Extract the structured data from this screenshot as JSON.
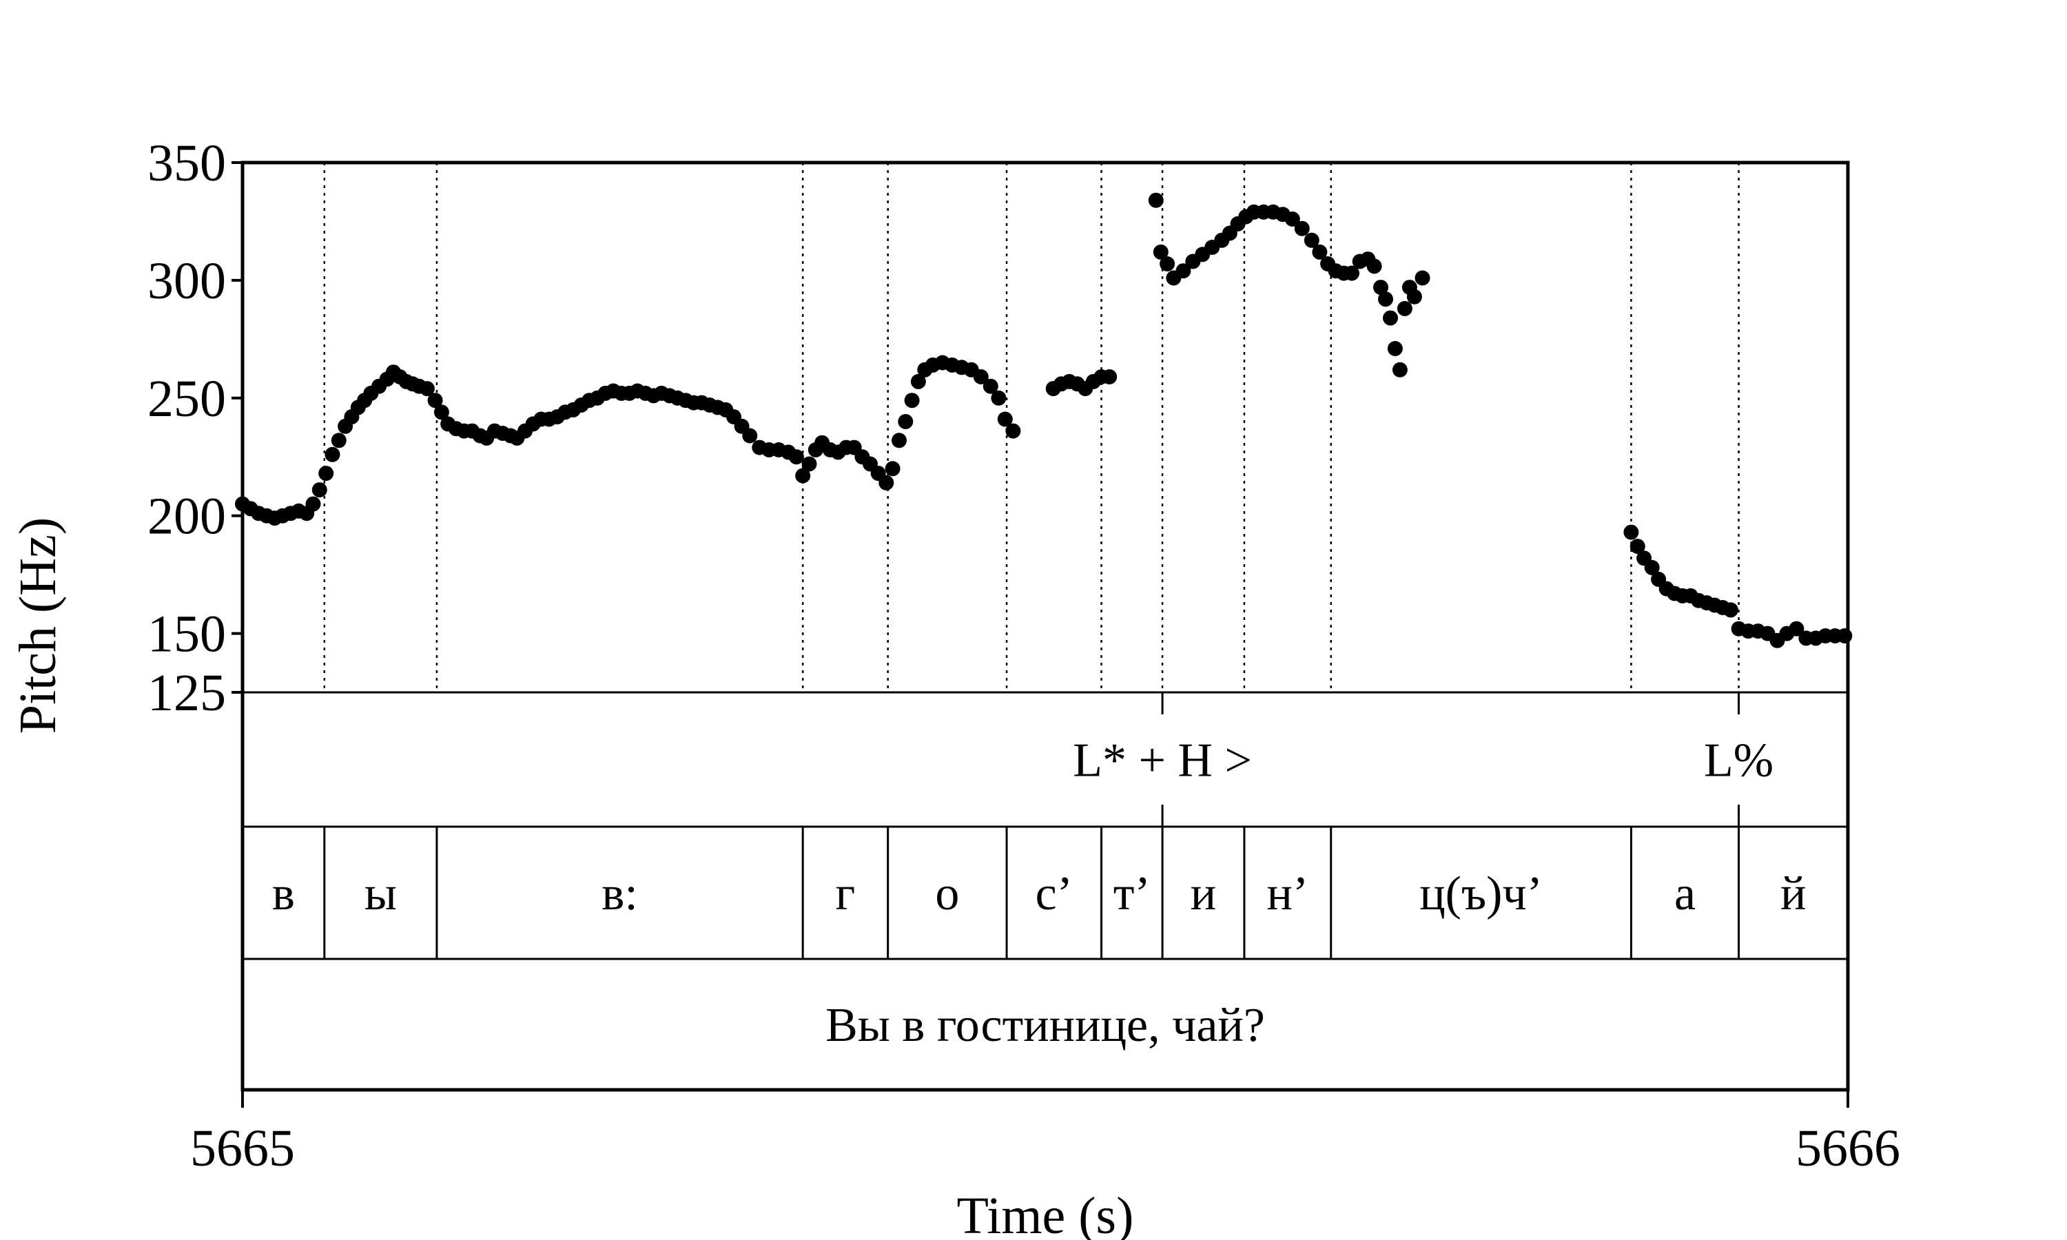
{
  "chart_data": {
    "type": "scatter",
    "xlabel": "Time (s)",
    "ylabel": "Pitch (Hz)",
    "xlim": [
      5665,
      5666
    ],
    "ylim": [
      125,
      350
    ],
    "x_tick_labels": [
      "5665",
      "5666"
    ],
    "y_ticks": [
      125,
      150,
      200,
      250,
      300,
      350
    ],
    "y_tick_labels": [
      "125",
      "150",
      "200",
      "250",
      "300",
      "350"
    ],
    "tone_tier": [
      {
        "label": "L* + H >",
        "time": 5665.573
      },
      {
        "label": "L%",
        "time": 5665.932
      }
    ],
    "segment_tier": [
      {
        "label": "в",
        "start": 5665.0,
        "end": 5665.051
      },
      {
        "label": "ы",
        "start": 5665.051,
        "end": 5665.121
      },
      {
        "label": "в:",
        "start": 5665.121,
        "end": 5665.349
      },
      {
        "label": "г",
        "start": 5665.349,
        "end": 5665.402
      },
      {
        "label": "о",
        "start": 5665.402,
        "end": 5665.476
      },
      {
        "label": "с’",
        "start": 5665.476,
        "end": 5665.535
      },
      {
        "label": "т’",
        "start": 5665.535,
        "end": 5665.573
      },
      {
        "label": "и",
        "start": 5665.573,
        "end": 5665.624
      },
      {
        "label": "н’",
        "start": 5665.624,
        "end": 5665.678
      },
      {
        "label": "ц(ъ)ч’",
        "start": 5665.678,
        "end": 5665.865
      },
      {
        "label": "а",
        "start": 5665.865,
        "end": 5665.932
      },
      {
        "label": "й",
        "start": 5665.932,
        "end": 5666.0
      }
    ],
    "sentence_tier": [
      {
        "label": "Вы в гостинице, чай?",
        "start": 5665.0,
        "end": 5666.0
      }
    ],
    "series": [
      {
        "points": [
          [
            5665.0,
            205
          ],
          [
            5665.005,
            203
          ],
          [
            5665.01,
            201
          ],
          [
            5665.015,
            200
          ],
          [
            5665.02,
            199
          ],
          [
            5665.025,
            200
          ],
          [
            5665.03,
            201
          ],
          [
            5665.035,
            202
          ],
          [
            5665.04,
            201
          ],
          [
            5665.044,
            205
          ],
          [
            5665.048,
            211
          ],
          [
            5665.052,
            218
          ],
          [
            5665.056,
            226
          ],
          [
            5665.06,
            232
          ],
          [
            5665.064,
            238
          ],
          [
            5665.068,
            242
          ],
          [
            5665.072,
            246
          ],
          [
            5665.076,
            249
          ],
          [
            5665.08,
            252
          ],
          [
            5665.085,
            255
          ],
          [
            5665.09,
            258
          ],
          [
            5665.094,
            261
          ],
          [
            5665.098,
            259
          ],
          [
            5665.102,
            257
          ],
          [
            5665.106,
            256
          ],
          [
            5665.11,
            255
          ],
          [
            5665.115,
            254
          ],
          [
            5665.12,
            249
          ],
          [
            5665.124,
            244
          ],
          [
            5665.128,
            239
          ],
          [
            5665.133,
            237
          ],
          [
            5665.138,
            236
          ],
          [
            5665.143,
            236
          ],
          [
            5665.148,
            234
          ],
          [
            5665.152,
            233
          ],
          [
            5665.157,
            236
          ],
          [
            5665.162,
            235
          ],
          [
            5665.167,
            234
          ],
          [
            5665.171,
            233
          ],
          [
            5665.176,
            236
          ],
          [
            5665.181,
            239
          ],
          [
            5665.186,
            241
          ],
          [
            5665.191,
            241
          ],
          [
            5665.196,
            242
          ],
          [
            5665.201,
            244
          ],
          [
            5665.206,
            245
          ],
          [
            5665.211,
            247
          ],
          [
            5665.216,
            249
          ],
          [
            5665.221,
            250
          ],
          [
            5665.226,
            252
          ],
          [
            5665.231,
            253
          ],
          [
            5665.236,
            252
          ],
          [
            5665.241,
            252
          ],
          [
            5665.246,
            253
          ],
          [
            5665.251,
            252
          ],
          [
            5665.256,
            251
          ],
          [
            5665.261,
            252
          ],
          [
            5665.266,
            251
          ],
          [
            5665.271,
            250
          ],
          [
            5665.276,
            249
          ],
          [
            5665.281,
            248
          ],
          [
            5665.286,
            248
          ],
          [
            5665.291,
            247
          ],
          [
            5665.296,
            246
          ],
          [
            5665.301,
            245
          ],
          [
            5665.306,
            242
          ],
          [
            5665.311,
            238
          ],
          [
            5665.316,
            234
          ],
          [
            5665.322,
            229
          ],
          [
            5665.328,
            228
          ],
          [
            5665.334,
            228
          ],
          [
            5665.34,
            227
          ],
          [
            5665.345,
            225
          ],
          [
            5665.349,
            217
          ],
          [
            5665.353,
            222
          ],
          [
            5665.357,
            228
          ],
          [
            5665.361,
            231
          ],
          [
            5665.366,
            228
          ],
          [
            5665.371,
            227
          ],
          [
            5665.376,
            229
          ],
          [
            5665.381,
            229
          ],
          [
            5665.386,
            225
          ],
          [
            5665.391,
            222
          ],
          [
            5665.396,
            218
          ],
          [
            5665.401,
            214
          ],
          [
            5665.405,
            220
          ],
          [
            5665.409,
            232
          ],
          [
            5665.413,
            240
          ],
          [
            5665.417,
            249
          ],
          [
            5665.421,
            257
          ],
          [
            5665.425,
            262
          ],
          [
            5665.43,
            264
          ],
          [
            5665.436,
            265
          ],
          [
            5665.442,
            264
          ],
          [
            5665.448,
            263
          ],
          [
            5665.454,
            262
          ],
          [
            5665.46,
            259
          ],
          [
            5665.466,
            255
          ],
          [
            5665.471,
            250
          ],
          [
            5665.475,
            241
          ],
          [
            5665.48,
            236
          ],
          [
            5665.505,
            254
          ],
          [
            5665.51,
            256
          ],
          [
            5665.515,
            257
          ],
          [
            5665.52,
            256
          ],
          [
            5665.525,
            254
          ],
          [
            5665.53,
            257
          ],
          [
            5665.535,
            259
          ],
          [
            5665.54,
            259
          ],
          [
            5665.569,
            334
          ],
          [
            5665.572,
            312
          ],
          [
            5665.576,
            307
          ],
          [
            5665.58,
            301
          ],
          [
            5665.586,
            304
          ],
          [
            5665.592,
            308
          ],
          [
            5665.598,
            311
          ],
          [
            5665.604,
            314
          ],
          [
            5665.61,
            317
          ],
          [
            5665.615,
            320
          ],
          [
            5665.62,
            324
          ],
          [
            5665.625,
            327
          ],
          [
            5665.63,
            329
          ],
          [
            5665.636,
            329
          ],
          [
            5665.642,
            329
          ],
          [
            5665.648,
            328
          ],
          [
            5665.654,
            326
          ],
          [
            5665.66,
            322
          ],
          [
            5665.666,
            317
          ],
          [
            5665.671,
            312
          ],
          [
            5665.676,
            307
          ],
          [
            5665.681,
            304
          ],
          [
            5665.686,
            303
          ],
          [
            5665.691,
            303
          ],
          [
            5665.696,
            308
          ],
          [
            5665.701,
            309
          ],
          [
            5665.705,
            306
          ],
          [
            5665.709,
            297
          ],
          [
            5665.712,
            292
          ],
          [
            5665.715,
            284
          ],
          [
            5665.718,
            271
          ],
          [
            5665.721,
            262
          ],
          [
            5665.724,
            288
          ],
          [
            5665.727,
            297
          ],
          [
            5665.73,
            293
          ],
          [
            5665.735,
            301
          ],
          [
            5665.865,
            193
          ],
          [
            5665.869,
            187
          ],
          [
            5665.873,
            182
          ],
          [
            5665.878,
            178
          ],
          [
            5665.882,
            173
          ],
          [
            5665.887,
            169
          ],
          [
            5665.892,
            167
          ],
          [
            5665.897,
            166
          ],
          [
            5665.902,
            166
          ],
          [
            5665.907,
            164
          ],
          [
            5665.912,
            163
          ],
          [
            5665.917,
            162
          ],
          [
            5665.922,
            161
          ],
          [
            5665.927,
            160
          ],
          [
            5665.932,
            152
          ],
          [
            5665.938,
            151
          ],
          [
            5665.944,
            151
          ],
          [
            5665.95,
            150
          ],
          [
            5665.956,
            147
          ],
          [
            5665.962,
            150
          ],
          [
            5665.968,
            152
          ],
          [
            5665.974,
            148
          ],
          [
            5665.98,
            148
          ],
          [
            5665.986,
            149
          ],
          [
            5665.992,
            149
          ],
          [
            5665.998,
            149
          ]
        ]
      }
    ]
  }
}
